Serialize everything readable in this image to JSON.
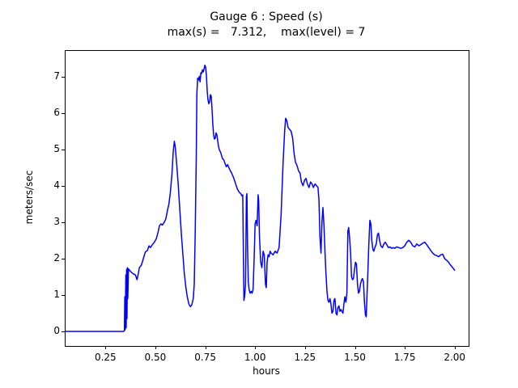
{
  "header": {
    "title": "Gauge 6 : Speed (s)",
    "subtitle": "max(s) =   7.312,    max(level) = 7"
  },
  "chart_data": {
    "type": "line",
    "title": "Gauge 6 : Speed (s)",
    "subtitle": "max(s) = 7.312, max(level) = 7",
    "max_s": 7.312,
    "max_level": 7,
    "xlabel": "hours",
    "ylabel": "meters/sec",
    "xlim": [
      0.05,
      2.07
    ],
    "ylim": [
      -0.4,
      7.7
    ],
    "grid": false,
    "legend": "none",
    "line_color": "#0000ff",
    "line_width": 1.5,
    "xticks": [
      {
        "v": 0.25,
        "label": "0.25"
      },
      {
        "v": 0.5,
        "label": "0.50"
      },
      {
        "v": 0.75,
        "label": "0.75"
      },
      {
        "v": 1.0,
        "label": "1.00"
      },
      {
        "v": 1.25,
        "label": "1.25"
      },
      {
        "v": 1.5,
        "label": "1.50"
      },
      {
        "v": 1.75,
        "label": "1.75"
      },
      {
        "v": 2.0,
        "label": "2.00"
      }
    ],
    "yticks": [
      {
        "v": 0,
        "label": "0"
      },
      {
        "v": 1,
        "label": "1"
      },
      {
        "v": 2,
        "label": "2"
      },
      {
        "v": 3,
        "label": "3"
      },
      {
        "v": 4,
        "label": "4"
      },
      {
        "v": 5,
        "label": "5"
      },
      {
        "v": 6,
        "label": "6"
      },
      {
        "v": 7,
        "label": "7"
      }
    ],
    "series": [
      {
        "name": "speed",
        "points": [
          [
            0.05,
            0.0
          ],
          [
            0.34,
            0.0
          ],
          [
            0.345,
            0.02
          ],
          [
            0.347,
            0.95
          ],
          [
            0.349,
            0.05
          ],
          [
            0.352,
            1.55
          ],
          [
            0.354,
            0.1
          ],
          [
            0.356,
            1.7
          ],
          [
            0.358,
            0.35
          ],
          [
            0.36,
            1.75
          ],
          [
            0.362,
            0.9
          ],
          [
            0.365,
            1.72
          ],
          [
            0.37,
            1.68
          ],
          [
            0.38,
            1.62
          ],
          [
            0.39,
            1.58
          ],
          [
            0.4,
            1.55
          ],
          [
            0.408,
            1.42
          ],
          [
            0.415,
            1.6
          ],
          [
            0.42,
            1.75
          ],
          [
            0.43,
            1.82
          ],
          [
            0.44,
            2.0
          ],
          [
            0.45,
            2.18
          ],
          [
            0.46,
            2.22
          ],
          [
            0.468,
            2.35
          ],
          [
            0.475,
            2.3
          ],
          [
            0.485,
            2.38
          ],
          [
            0.495,
            2.45
          ],
          [
            0.505,
            2.55
          ],
          [
            0.515,
            2.75
          ],
          [
            0.52,
            2.9
          ],
          [
            0.528,
            2.95
          ],
          [
            0.535,
            2.92
          ],
          [
            0.545,
            3.0
          ],
          [
            0.553,
            3.1
          ],
          [
            0.56,
            3.3
          ],
          [
            0.568,
            3.5
          ],
          [
            0.575,
            3.8
          ],
          [
            0.583,
            4.3
          ],
          [
            0.59,
            4.95
          ],
          [
            0.595,
            5.22
          ],
          [
            0.6,
            5.05
          ],
          [
            0.607,
            4.6
          ],
          [
            0.615,
            4.0
          ],
          [
            0.622,
            3.4
          ],
          [
            0.63,
            2.7
          ],
          [
            0.638,
            2.1
          ],
          [
            0.645,
            1.6
          ],
          [
            0.653,
            1.2
          ],
          [
            0.66,
            0.95
          ],
          [
            0.668,
            0.75
          ],
          [
            0.675,
            0.68
          ],
          [
            0.682,
            0.72
          ],
          [
            0.69,
            0.9
          ],
          [
            0.695,
            1.3
          ],
          [
            0.7,
            2.7
          ],
          [
            0.705,
            4.8
          ],
          [
            0.708,
            6.5
          ],
          [
            0.712,
            6.95
          ],
          [
            0.716,
            6.9
          ],
          [
            0.72,
            7.0
          ],
          [
            0.724,
            6.85
          ],
          [
            0.728,
            7.1
          ],
          [
            0.732,
            7.08
          ],
          [
            0.736,
            7.18
          ],
          [
            0.74,
            7.12
          ],
          [
            0.744,
            7.2
          ],
          [
            0.748,
            7.31
          ],
          [
            0.752,
            7.25
          ],
          [
            0.756,
            7.0
          ],
          [
            0.76,
            6.6
          ],
          [
            0.764,
            6.35
          ],
          [
            0.768,
            6.25
          ],
          [
            0.772,
            6.3
          ],
          [
            0.776,
            6.5
          ],
          [
            0.78,
            6.45
          ],
          [
            0.784,
            6.1
          ],
          [
            0.788,
            5.7
          ],
          [
            0.792,
            5.4
          ],
          [
            0.796,
            5.28
          ],
          [
            0.8,
            5.3
          ],
          [
            0.804,
            5.45
          ],
          [
            0.808,
            5.4
          ],
          [
            0.812,
            5.25
          ],
          [
            0.816,
            5.1
          ],
          [
            0.82,
            5.0
          ],
          [
            0.828,
            4.9
          ],
          [
            0.836,
            4.75
          ],
          [
            0.844,
            4.7
          ],
          [
            0.85,
            4.6
          ],
          [
            0.856,
            4.52
          ],
          [
            0.862,
            4.58
          ],
          [
            0.868,
            4.5
          ],
          [
            0.875,
            4.42
          ],
          [
            0.882,
            4.35
          ],
          [
            0.89,
            4.25
          ],
          [
            0.898,
            4.12
          ],
          [
            0.905,
            4.0
          ],
          [
            0.912,
            3.9
          ],
          [
            0.92,
            3.82
          ],
          [
            0.928,
            3.78
          ],
          [
            0.934,
            3.72
          ],
          [
            0.938,
            3.75
          ],
          [
            0.941,
            2.2
          ],
          [
            0.944,
            0.85
          ],
          [
            0.948,
            1.0
          ],
          [
            0.952,
            1.3
          ],
          [
            0.956,
            3.7
          ],
          [
            0.959,
            3.78
          ],
          [
            0.962,
            2.4
          ],
          [
            0.966,
            1.35
          ],
          [
            0.97,
            1.15
          ],
          [
            0.975,
            1.05
          ],
          [
            0.98,
            1.1
          ],
          [
            0.985,
            1.05
          ],
          [
            0.99,
            1.15
          ],
          [
            0.995,
            2.0
          ],
          [
            1.0,
            2.95
          ],
          [
            1.005,
            3.05
          ],
          [
            1.01,
            2.9
          ],
          [
            1.015,
            3.75
          ],
          [
            1.018,
            3.6
          ],
          [
            1.022,
            2.6
          ],
          [
            1.028,
            1.9
          ],
          [
            1.034,
            1.75
          ],
          [
            1.04,
            2.2
          ],
          [
            1.046,
            2.1
          ],
          [
            1.052,
            1.3
          ],
          [
            1.056,
            1.2
          ],
          [
            1.06,
            1.9
          ],
          [
            1.065,
            2.1
          ],
          [
            1.07,
            2.05
          ],
          [
            1.075,
            2.2
          ],
          [
            1.08,
            2.15
          ],
          [
            1.09,
            2.1
          ],
          [
            1.1,
            2.2
          ],
          [
            1.11,
            2.15
          ],
          [
            1.12,
            2.3
          ],
          [
            1.13,
            3.2
          ],
          [
            1.14,
            4.6
          ],
          [
            1.148,
            5.5
          ],
          [
            1.153,
            5.85
          ],
          [
            1.158,
            5.8
          ],
          [
            1.165,
            5.6
          ],
          [
            1.172,
            5.55
          ],
          [
            1.18,
            5.5
          ],
          [
            1.188,
            5.3
          ],
          [
            1.195,
            4.9
          ],
          [
            1.202,
            4.65
          ],
          [
            1.21,
            4.55
          ],
          [
            1.218,
            4.4
          ],
          [
            1.225,
            4.35
          ],
          [
            1.232,
            4.1
          ],
          [
            1.24,
            4.0
          ],
          [
            1.248,
            4.15
          ],
          [
            1.255,
            4.2
          ],
          [
            1.262,
            4.05
          ],
          [
            1.27,
            3.95
          ],
          [
            1.278,
            4.1
          ],
          [
            1.285,
            4.05
          ],
          [
            1.292,
            3.95
          ],
          [
            1.3,
            4.05
          ],
          [
            1.308,
            4.0
          ],
          [
            1.315,
            3.95
          ],
          [
            1.32,
            3.6
          ],
          [
            1.325,
            2.6
          ],
          [
            1.33,
            2.15
          ],
          [
            1.335,
            3.0
          ],
          [
            1.34,
            3.4
          ],
          [
            1.345,
            2.9
          ],
          [
            1.35,
            2.2
          ],
          [
            1.355,
            1.6
          ],
          [
            1.36,
            1.1
          ],
          [
            1.365,
            0.85
          ],
          [
            1.37,
            0.8
          ],
          [
            1.375,
            0.9
          ],
          [
            1.38,
            0.75
          ],
          [
            1.385,
            0.5
          ],
          [
            1.39,
            0.55
          ],
          [
            1.395,
            0.85
          ],
          [
            1.4,
            0.9
          ],
          [
            1.405,
            0.5
          ],
          [
            1.41,
            0.45
          ],
          [
            1.415,
            0.65
          ],
          [
            1.42,
            0.7
          ],
          [
            1.425,
            0.55
          ],
          [
            1.43,
            0.6
          ],
          [
            1.435,
            0.55
          ],
          [
            1.44,
            0.5
          ],
          [
            1.445,
            0.75
          ],
          [
            1.45,
            0.95
          ],
          [
            1.455,
            0.8
          ],
          [
            1.46,
            1.05
          ],
          [
            1.465,
            2.75
          ],
          [
            1.469,
            2.85
          ],
          [
            1.473,
            2.6
          ],
          [
            1.478,
            2.2
          ],
          [
            1.483,
            1.5
          ],
          [
            1.488,
            1.42
          ],
          [
            1.493,
            1.45
          ],
          [
            1.498,
            1.7
          ],
          [
            1.503,
            1.9
          ],
          [
            1.508,
            1.85
          ],
          [
            1.513,
            1.3
          ],
          [
            1.518,
            1.05
          ],
          [
            1.523,
            1.1
          ],
          [
            1.528,
            1.3
          ],
          [
            1.533,
            1.4
          ],
          [
            1.538,
            1.45
          ],
          [
            1.543,
            1.35
          ],
          [
            1.548,
            0.8
          ],
          [
            1.553,
            0.45
          ],
          [
            1.557,
            0.4
          ],
          [
            1.56,
            0.9
          ],
          [
            1.565,
            1.6
          ],
          [
            1.57,
            2.4
          ],
          [
            1.575,
            3.05
          ],
          [
            1.58,
            2.95
          ],
          [
            1.585,
            2.5
          ],
          [
            1.59,
            2.25
          ],
          [
            1.595,
            2.2
          ],
          [
            1.6,
            2.3
          ],
          [
            1.607,
            2.4
          ],
          [
            1.613,
            2.65
          ],
          [
            1.618,
            2.7
          ],
          [
            1.624,
            2.5
          ],
          [
            1.63,
            2.35
          ],
          [
            1.638,
            2.3
          ],
          [
            1.645,
            2.4
          ],
          [
            1.652,
            2.45
          ],
          [
            1.66,
            2.38
          ],
          [
            1.668,
            2.3
          ],
          [
            1.676,
            2.32
          ],
          [
            1.684,
            2.28
          ],
          [
            1.692,
            2.3
          ],
          [
            1.7,
            2.28
          ],
          [
            1.71,
            2.32
          ],
          [
            1.72,
            2.3
          ],
          [
            1.73,
            2.28
          ],
          [
            1.74,
            2.3
          ],
          [
            1.75,
            2.35
          ],
          [
            1.76,
            2.45
          ],
          [
            1.77,
            2.5
          ],
          [
            1.78,
            2.45
          ],
          [
            1.79,
            2.35
          ],
          [
            1.8,
            2.32
          ],
          [
            1.81,
            2.4
          ],
          [
            1.82,
            2.35
          ],
          [
            1.83,
            2.38
          ],
          [
            1.84,
            2.42
          ],
          [
            1.85,
            2.45
          ],
          [
            1.86,
            2.38
          ],
          [
            1.87,
            2.3
          ],
          [
            1.88,
            2.22
          ],
          [
            1.89,
            2.15
          ],
          [
            1.9,
            2.1
          ],
          [
            1.91,
            2.08
          ],
          [
            1.92,
            2.05
          ],
          [
            1.93,
            2.1
          ],
          [
            1.94,
            2.12
          ],
          [
            1.95,
            2.0
          ],
          [
            1.96,
            1.95
          ],
          [
            1.97,
            1.9
          ],
          [
            1.975,
            1.85
          ],
          [
            1.98,
            1.82
          ],
          [
            1.99,
            1.75
          ],
          [
            2.0,
            1.68
          ]
        ]
      }
    ]
  }
}
